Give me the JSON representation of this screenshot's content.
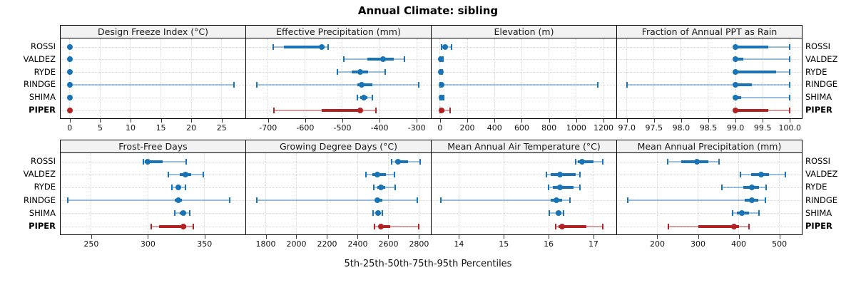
{
  "title": "Annual Climate: sibling",
  "xlabel": "5th-25th-50th-75th-95th Percentiles",
  "colors": {
    "site_color": "#1874b6",
    "site_color_light": "rgba(24,116,182,0.42)",
    "highlight_color": "#b22222",
    "highlight_color_light": "rgba(178,34,34,0.42)",
    "strip_background": "#f2f2f2",
    "panel_border": "#000000",
    "gridline": "#d6d6d6"
  },
  "chart_data": {
    "type": "dotplot",
    "layout": {
      "grid_rows": 2,
      "grid_cols": 4,
      "legend": "none",
      "site_labels_left": true,
      "site_labels_right": true
    },
    "percentiles": [
      "5th",
      "25th",
      "50th",
      "75th",
      "95th"
    ],
    "sites": [
      "ROSSI",
      "VALDEZ",
      "RYDE",
      "RINDGE",
      "SHIMA",
      "PIPER"
    ],
    "highlight_site": "PIPER",
    "panels": [
      {
        "title": "Design Freeze Index (°C)",
        "axis_range": [
          -1.5,
          28.9
        ],
        "axis_ticks": [
          0,
          5,
          10,
          15,
          20,
          25
        ],
        "tick_labels": [
          "0",
          "5",
          "10",
          "15",
          "20",
          "25"
        ],
        "values": {
          "ROSSI": [
            0,
            0,
            0,
            0,
            0
          ],
          "VALDEZ": [
            0,
            0,
            0,
            0,
            0
          ],
          "RYDE": [
            0,
            0,
            0,
            0,
            0
          ],
          "RINDGE": [
            0,
            0,
            0,
            0,
            27
          ],
          "SHIMA": [
            0,
            0,
            0,
            0,
            0
          ],
          "PIPER": [
            0,
            0,
            0,
            0,
            0
          ]
        }
      },
      {
        "title": "Effective Precipitation (mm)",
        "axis_range": [
          -759,
          -262
        ],
        "axis_ticks": [
          -700,
          -600,
          -500,
          -400,
          -300
        ],
        "tick_labels": [
          "-700",
          "-600",
          "-500",
          "-400",
          "-300"
        ],
        "values": {
          "ROSSI": [
            -687,
            -658,
            -555,
            -548,
            -538
          ],
          "VALDEZ": [
            -497,
            -433,
            -390,
            -362,
            -333
          ],
          "RYDE": [
            -513,
            -475,
            -452,
            -430,
            -385
          ],
          "RINDGE": [
            -730,
            -460,
            -448,
            -420,
            -295
          ],
          "SHIMA": [
            -460,
            -452,
            -443,
            -432,
            -419
          ],
          "PIPER": [
            -685,
            -555,
            -452,
            -448,
            -410
          ]
        }
      },
      {
        "title": "Elevation (m)",
        "axis_range": [
          -62,
          1294
        ],
        "axis_ticks": [
          0,
          200,
          400,
          600,
          800,
          1000,
          1200
        ],
        "tick_labels": [
          "0",
          "200",
          "400",
          "600",
          "800",
          "1000",
          "1200"
        ],
        "values": {
          "ROSSI": [
            10,
            25,
            40,
            55,
            85
          ],
          "VALDEZ": [
            0,
            3,
            8,
            14,
            22
          ],
          "RYDE": [
            0,
            2,
            5,
            8,
            14
          ],
          "RINDGE": [
            0,
            5,
            12,
            25,
            1160
          ],
          "SHIMA": [
            0,
            4,
            10,
            16,
            26
          ],
          "PIPER": [
            0,
            5,
            12,
            30,
            75
          ]
        }
      },
      {
        "title": "Fraction of Annual PPT as Rain",
        "axis_range": [
          96.82,
          100.22
        ],
        "axis_ticks": [
          97.0,
          97.5,
          98.0,
          98.5,
          99.0,
          99.5,
          100.0
        ],
        "tick_labels": [
          "97.0",
          "97.5",
          "98.0",
          "98.5",
          "99.0",
          "99.5",
          "100.0"
        ],
        "values": {
          "ROSSI": [
            99.0,
            99.0,
            99.0,
            99.6,
            100.0
          ],
          "VALDEZ": [
            99.0,
            99.0,
            99.0,
            99.15,
            100.0
          ],
          "RYDE": [
            99.0,
            99.0,
            99.0,
            99.75,
            100.0
          ],
          "RINDGE": [
            97.0,
            99.0,
            99.0,
            99.3,
            100.0
          ],
          "SHIMA": [
            99.0,
            99.0,
            99.0,
            99.1,
            100.0
          ],
          "PIPER": [
            99.0,
            99.0,
            99.0,
            99.6,
            100.0
          ]
        }
      },
      {
        "title": "Frost-Free Days",
        "axis_range": [
          223,
          386
        ],
        "axis_ticks": [
          250,
          300,
          350
        ],
        "tick_labels": [
          "250",
          "300",
          "350"
        ],
        "values": {
          "ROSSI": [
            296,
            297,
            300,
            313,
            334
          ],
          "VALDEZ": [
            318,
            328,
            333,
            338,
            349
          ],
          "RYDE": [
            321,
            325,
            327,
            329,
            333
          ],
          "RINDGE": [
            229,
            324,
            327,
            330,
            372
          ],
          "SHIMA": [
            324,
            328,
            331,
            333,
            337
          ],
          "PIPER": [
            303,
            310,
            331,
            334,
            340
          ]
        }
      },
      {
        "title": "Growing Degree Days (°C)",
        "axis_range": [
          1672,
          2877
        ],
        "axis_ticks": [
          1800,
          2000,
          2200,
          2400,
          2600,
          2800
        ],
        "tick_labels": [
          "1800",
          "2000",
          "2200",
          "2400",
          "2600",
          "2800"
        ],
        "values": {
          "ROSSI": [
            2620,
            2645,
            2665,
            2730,
            2805
          ],
          "VALDEZ": [
            2455,
            2495,
            2530,
            2585,
            2640
          ],
          "RYDE": [
            2505,
            2530,
            2550,
            2580,
            2645
          ],
          "RINDGE": [
            1740,
            2515,
            2530,
            2560,
            2790
          ],
          "SHIMA": [
            2500,
            2520,
            2535,
            2548,
            2562
          ],
          "PIPER": [
            2510,
            2540,
            2553,
            2610,
            2800
          ]
        }
      },
      {
        "title": "Mean Annual Air Temperature (°C)",
        "axis_range": [
          13.39,
          17.51
        ],
        "axis_ticks": [
          14,
          15,
          16,
          17
        ],
        "tick_labels": [
          "14",
          "15",
          "16",
          "17"
        ],
        "values": {
          "ROSSI": [
            16.6,
            16.65,
            16.75,
            17.0,
            17.2
          ],
          "VALDEZ": [
            15.95,
            16.05,
            16.25,
            16.6,
            16.7
          ],
          "RYDE": [
            16.0,
            16.1,
            16.25,
            16.55,
            16.7
          ],
          "RINDGE": [
            13.6,
            16.05,
            16.17,
            16.3,
            16.47
          ],
          "SHIMA": [
            16.02,
            16.15,
            16.22,
            16.28,
            16.33
          ],
          "PIPER": [
            16.15,
            16.22,
            16.3,
            16.85,
            17.2
          ]
        }
      },
      {
        "title": "Mean Annual Precipitation (mm)",
        "axis_range": [
          101,
          555
        ],
        "axis_ticks": [
          200,
          300,
          400,
          500
        ],
        "tick_labels": [
          "200",
          "300",
          "400",
          "500"
        ],
        "values": {
          "ROSSI": [
            225,
            258,
            297,
            325,
            352
          ],
          "VALDEZ": [
            405,
            430,
            455,
            475,
            515
          ],
          "RYDE": [
            358,
            412,
            432,
            450,
            468
          ],
          "RINDGE": [
            128,
            415,
            432,
            448,
            466
          ],
          "SHIMA": [
            385,
            395,
            408,
            425,
            450
          ],
          "PIPER": [
            228,
            300,
            388,
            400,
            425
          ]
        }
      }
    ]
  }
}
